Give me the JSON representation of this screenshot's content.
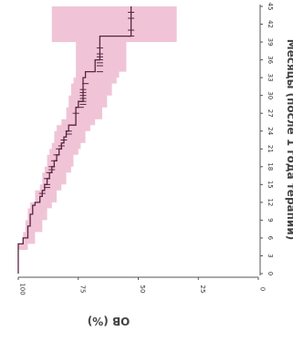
{
  "chart_data": {
    "type": "line",
    "orientation": "rotated-90-clockwise",
    "title": "",
    "xlabel": "Месяцы (после 1 года терапии)",
    "ylabel": "OB (%)",
    "xlim": [
      0,
      45
    ],
    "ylim": [
      0,
      100
    ],
    "x_ticks": [
      "0",
      "3",
      "6",
      "9",
      "12",
      "15",
      "18",
      "21",
      "24",
      "27",
      "30",
      "33",
      "36",
      "39",
      "42",
      "45"
    ],
    "y_ticks": [
      "100",
      "75",
      "50",
      "25",
      "0"
    ],
    "grid": false,
    "colors": {
      "line": "#5a2340",
      "band": "#f0c4d6",
      "axis": "#555555"
    },
    "series": [
      {
        "points": [
          [
            0,
            100
          ],
          [
            4.5,
            100
          ],
          [
            5,
            98
          ],
          [
            6,
            96
          ],
          [
            8,
            95
          ],
          [
            10,
            94
          ],
          [
            11.5,
            93
          ],
          [
            12,
            91
          ],
          [
            13,
            90
          ],
          [
            14,
            89
          ],
          [
            15,
            88
          ],
          [
            16,
            87
          ],
          [
            17,
            86
          ],
          [
            18,
            85
          ],
          [
            19,
            84
          ],
          [
            20,
            83
          ],
          [
            21,
            82
          ],
          [
            22,
            81
          ],
          [
            23,
            80
          ],
          [
            24,
            79
          ],
          [
            25,
            76
          ],
          [
            27,
            76
          ],
          [
            28,
            75
          ],
          [
            29,
            73
          ],
          [
            31,
            73
          ],
          [
            33,
            72
          ],
          [
            34,
            68
          ],
          [
            36,
            66
          ],
          [
            39,
            66
          ],
          [
            40,
            53
          ],
          [
            45,
            53
          ]
        ],
        "censored": [
          [
            13.5,
            90
          ],
          [
            14.5,
            88
          ],
          [
            15,
            88
          ],
          [
            16,
            88
          ],
          [
            17,
            87
          ],
          [
            17.5,
            86
          ],
          [
            18,
            86
          ],
          [
            19,
            85
          ],
          [
            20,
            84
          ],
          [
            21,
            83
          ],
          [
            21.5,
            82
          ],
          [
            22.5,
            81
          ],
          [
            23.5,
            79
          ],
          [
            24,
            79
          ],
          [
            27,
            76
          ],
          [
            28,
            74
          ],
          [
            28.5,
            73
          ],
          [
            29,
            73
          ],
          [
            29.5,
            73
          ],
          [
            30,
            73
          ],
          [
            30.5,
            73
          ],
          [
            31,
            73
          ],
          [
            32,
            72
          ],
          [
            34,
            66
          ],
          [
            35,
            66
          ],
          [
            35.5,
            66
          ],
          [
            36,
            66
          ],
          [
            36.5,
            66
          ],
          [
            37,
            66
          ],
          [
            38,
            66
          ],
          [
            40,
            53
          ],
          [
            41,
            53
          ],
          [
            43,
            53
          ],
          [
            44,
            53
          ]
        ],
        "ci_band": [
          [
            0,
            100,
            100
          ],
          [
            3,
            100,
            100
          ],
          [
            4,
            100,
            96
          ],
          [
            5,
            98,
            93
          ],
          [
            7,
            97,
            90
          ],
          [
            9,
            96,
            88
          ],
          [
            11,
            95,
            86
          ],
          [
            12,
            93,
            84
          ],
          [
            14,
            91,
            82
          ],
          [
            15,
            90,
            80
          ],
          [
            17,
            89,
            78
          ],
          [
            18,
            88,
            77
          ],
          [
            20,
            87,
            75
          ],
          [
            21,
            86,
            74
          ],
          [
            22,
            85,
            72
          ],
          [
            24,
            84,
            70
          ],
          [
            25,
            82,
            68
          ],
          [
            26,
            80,
            65
          ],
          [
            28,
            79,
            63
          ],
          [
            30,
            78,
            61
          ],
          [
            32,
            77,
            59
          ],
          [
            33,
            76,
            58
          ],
          [
            34,
            76,
            55
          ],
          [
            38,
            76,
            55
          ],
          [
            39,
            86,
            34
          ],
          [
            45,
            86,
            34
          ]
        ]
      }
    ]
  }
}
